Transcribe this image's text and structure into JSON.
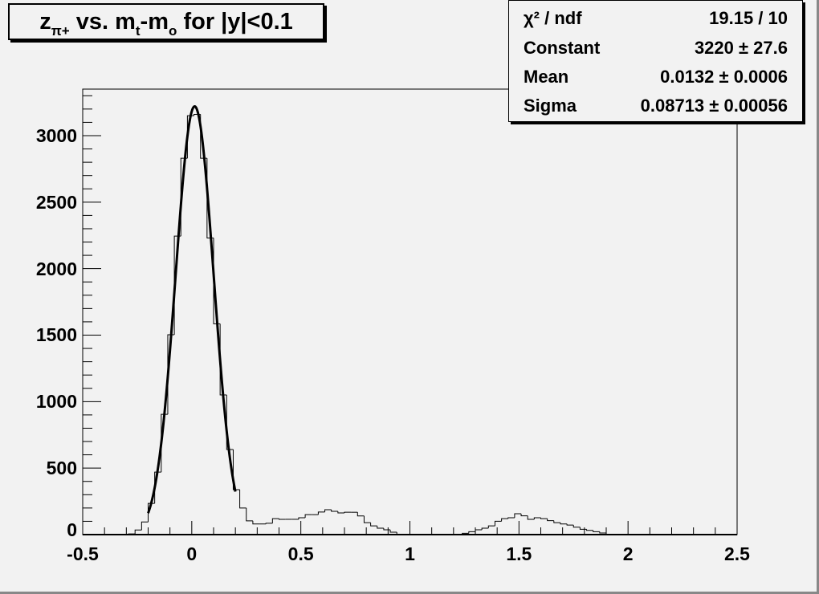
{
  "title": {
    "parts": [
      "z",
      "π+",
      " vs. m",
      "t",
      "-m",
      "o",
      " for |y|<0.1"
    ]
  },
  "stats": {
    "rows": [
      {
        "label": "χ² / ndf",
        "value": "19.15 / 10"
      },
      {
        "label": "Constant",
        "value": "3220 ± 27.6"
      },
      {
        "label": "Mean",
        "value": "0.0132 ± 0.0006"
      },
      {
        "label": "Sigma",
        "value": "0.08713 ± 0.00056"
      }
    ]
  },
  "chart_data": {
    "type": "histogram",
    "xlim": [
      -0.5,
      2.5
    ],
    "ylim": [
      0,
      3350
    ],
    "bin_width": 0.03,
    "x_ticks": [
      "-0.5",
      "0",
      "0.5",
      "1",
      "1.5",
      "2",
      "2.5"
    ],
    "x_tick_values": [
      -0.5,
      0,
      0.5,
      1,
      1.5,
      2,
      2.5
    ],
    "y_ticks": [
      "0",
      "500",
      "1000",
      "1500",
      "2000",
      "2500",
      "3000"
    ],
    "y_tick_values": [
      0,
      500,
      1000,
      1500,
      2000,
      2500,
      3000
    ],
    "values": [
      0,
      0,
      0,
      0,
      0,
      0,
      0,
      5,
      35,
      95,
      235,
      470,
      905,
      1503,
      2245,
      2830,
      3150,
      3160,
      2830,
      2230,
      1585,
      1050,
      640,
      338,
      200,
      103,
      80,
      80,
      85,
      120,
      115,
      115,
      115,
      127,
      150,
      150,
      170,
      187,
      175,
      163,
      168,
      168,
      140,
      90,
      66,
      48,
      36,
      18,
      0,
      0,
      0,
      0,
      0,
      0,
      0,
      0,
      0,
      0,
      10,
      22,
      36,
      48,
      66,
      100,
      120,
      127,
      157,
      141,
      115,
      127,
      120,
      105,
      90,
      80,
      72,
      56,
      40,
      32,
      22,
      12,
      0,
      0,
      0,
      0,
      0,
      0,
      0,
      0,
      0,
      0,
      0,
      0,
      0,
      0,
      0,
      0,
      0,
      0,
      0,
      0
    ],
    "fit": {
      "function": "gaus",
      "constant": 3220,
      "mean": 0.0132,
      "sigma": 0.08713,
      "range": [
        -0.2,
        0.2
      ]
    },
    "grid": false,
    "colors": {
      "background": "#f2f2f2",
      "line": "#000000"
    }
  }
}
